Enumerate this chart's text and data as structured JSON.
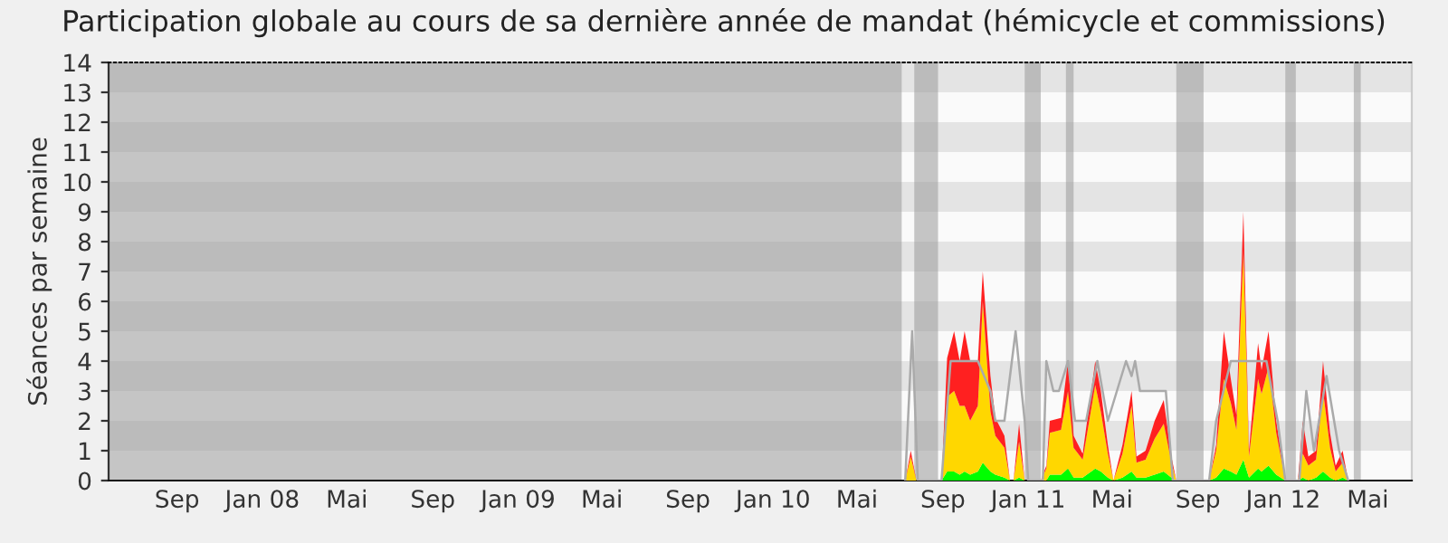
{
  "chart_data": {
    "type": "area",
    "stacked": true,
    "title": "Participation globale au cours de sa dernière année de mandat (hémicycle et commissions)",
    "ylabel": "Séances par semaine",
    "x": [
      "2010-07-04",
      "2010-07-09",
      "2010-07-17",
      "2010-07-25",
      "2010-08-30",
      "2010-09-07",
      "2010-09-17",
      "2010-09-25",
      "2010-10-02",
      "2010-10-10",
      "2010-10-21",
      "2010-10-28",
      "2010-11-08",
      "2010-11-15",
      "2010-11-28",
      "2010-12-06",
      "2010-12-11",
      "2010-12-19",
      "2010-12-27",
      "2011-01-01",
      "2011-01-19",
      "2011-01-27",
      "2011-02-01",
      "2011-02-17",
      "2011-02-27",
      "2011-03-07",
      "2011-03-20",
      "2011-04-07",
      "2011-04-15",
      "2011-04-25",
      "2011-05-03",
      "2011-05-16",
      "2011-05-29",
      "2011-06-05",
      "2011-06-18",
      "2011-07-01",
      "2011-07-14",
      "2011-07-25",
      "2011-08-01",
      "2011-09-17",
      "2011-09-27",
      "2011-10-08",
      "2011-10-18",
      "2011-10-26",
      "2011-11-05",
      "2011-11-13",
      "2011-11-26",
      "2011-12-01",
      "2011-12-11",
      "2011-12-22",
      "2012-01-04",
      "2012-01-22",
      "2012-01-29",
      "2012-02-06",
      "2012-02-17",
      "2012-02-27",
      "2012-03-08",
      "2012-03-16",
      "2012-03-26",
      "2012-04-03"
    ],
    "series": [
      {
        "color": "#00ff00",
        "values": [
          0,
          0,
          0,
          0,
          0,
          0.3,
          0.3,
          0.2,
          0.3,
          0.2,
          0.3,
          0.6,
          0.3,
          0.2,
          0.1,
          0,
          0,
          0.1,
          0,
          0,
          0,
          0,
          0.2,
          0.2,
          0.4,
          0.1,
          0.1,
          0.4,
          0.3,
          0.1,
          0,
          0.1,
          0.3,
          0.1,
          0.1,
          0.2,
          0.3,
          0.1,
          0,
          0,
          0.1,
          0.4,
          0.3,
          0.2,
          0.7,
          0.1,
          0.4,
          0.3,
          0.5,
          0.2,
          0,
          0,
          0.1,
          0,
          0.1,
          0.3,
          0.1,
          0,
          0.1,
          0
        ]
      },
      {
        "color": "#ffd700",
        "values": [
          0,
          0,
          0.8,
          0,
          0,
          2.5,
          2.7,
          2.3,
          2.2,
          1.8,
          2.2,
          5.4,
          2.0,
          1.3,
          1.0,
          0,
          0,
          1.2,
          0,
          0,
          0,
          0.4,
          1.4,
          1.5,
          2.6,
          1.0,
          0.6,
          2.8,
          2.0,
          0.8,
          0,
          0.8,
          2.2,
          0.5,
          0.6,
          1.2,
          1.6,
          0.5,
          0,
          0,
          0.9,
          3.0,
          2.3,
          1.5,
          7.0,
          0.7,
          3.0,
          2.6,
          3.3,
          1.4,
          0,
          0,
          0.8,
          0.5,
          0.6,
          2.7,
          1.0,
          0.3,
          0.5,
          0
        ]
      },
      {
        "color": "#ff2020",
        "values": [
          0,
          0,
          0.2,
          0,
          0,
          1.3,
          2.0,
          1.5,
          2.5,
          2.0,
          1.5,
          1.0,
          1.2,
          0.6,
          0.4,
          0,
          0,
          0.6,
          0,
          0,
          0,
          0.1,
          0.4,
          0.4,
          1.0,
          0.4,
          0.2,
          0.8,
          0.7,
          0.3,
          0,
          0.3,
          0.5,
          0.2,
          0.3,
          0.6,
          0.8,
          0.2,
          0,
          0,
          0.2,
          1.6,
          0.8,
          0.5,
          1.3,
          0.2,
          1.2,
          0.8,
          1.2,
          0.4,
          0,
          0,
          1.1,
          0.3,
          0.3,
          1.0,
          0.5,
          0.2,
          0.4,
          0
        ]
      },
      {
        "type": "line",
        "color": "#aaaaaa",
        "x": [
          "2010-07-09",
          "2010-07-19",
          "2010-07-27",
          "2010-08-30",
          "2010-09-12",
          "2010-10-21",
          "2010-11-08",
          "2010-11-15",
          "2010-11-28",
          "2010-12-14",
          "2010-12-27",
          "2011-01-01",
          "2011-01-22",
          "2011-01-27",
          "2011-02-06",
          "2011-02-14",
          "2011-02-27",
          "2011-03-09",
          "2011-03-25",
          "2011-04-10",
          "2011-04-25",
          "2011-05-21",
          "2011-05-29",
          "2011-06-03",
          "2011-06-10",
          "2011-07-06",
          "2011-07-17",
          "2011-07-27",
          "2011-09-17",
          "2011-09-27",
          "2011-10-18",
          "2011-11-08",
          "2011-12-08",
          "2011-12-24",
          "2012-01-04",
          "2012-01-24",
          "2012-02-03",
          "2012-02-14",
          "2012-03-03",
          "2012-03-21",
          "2012-04-03"
        ],
        "values": [
          0,
          5,
          0,
          0,
          4,
          4,
          3,
          2,
          2,
          5,
          2,
          0,
          0,
          4,
          3,
          3,
          4,
          2,
          2,
          4,
          2,
          4,
          3.5,
          4,
          3,
          3,
          3,
          0,
          0,
          2,
          4,
          4,
          4,
          2,
          0,
          0,
          3,
          1,
          3.5,
          1,
          0
        ]
      }
    ],
    "xlim": [
      "2007-05-26",
      "2012-07-03"
    ],
    "xticks": [
      {
        "value": "2007-09-01",
        "label": "Sep"
      },
      {
        "value": "2008-01-01",
        "label": "Jan 08"
      },
      {
        "value": "2008-05-01",
        "label": "Mai"
      },
      {
        "value": "2008-09-01",
        "label": "Sep"
      },
      {
        "value": "2009-01-01",
        "label": "Jan 09"
      },
      {
        "value": "2009-05-01",
        "label": "Mai"
      },
      {
        "value": "2009-09-01",
        "label": "Sep"
      },
      {
        "value": "2010-01-01",
        "label": "Jan 10"
      },
      {
        "value": "2010-05-01",
        "label": "Mai"
      },
      {
        "value": "2010-09-01",
        "label": "Sep"
      },
      {
        "value": "2011-01-01",
        "label": "Jan 11"
      },
      {
        "value": "2011-05-01",
        "label": "Mai"
      },
      {
        "value": "2011-09-01",
        "label": "Sep"
      },
      {
        "value": "2012-01-01",
        "label": "Jan 12"
      },
      {
        "value": "2012-05-01",
        "label": "Mai"
      }
    ],
    "ylim": [
      0,
      14
    ],
    "yticks": [
      0,
      1,
      2,
      3,
      4,
      5,
      6,
      7,
      8,
      9,
      10,
      11,
      12,
      13,
      14
    ],
    "bands": [
      {
        "axis": "y",
        "from": 1,
        "to": 2,
        "color": "#e4e4e4"
      },
      {
        "axis": "y",
        "from": 3,
        "to": 4,
        "color": "#e4e4e4"
      },
      {
        "axis": "y",
        "from": 5,
        "to": 6,
        "color": "#e4e4e4"
      },
      {
        "axis": "y",
        "from": 7,
        "to": 8,
        "color": "#e4e4e4"
      },
      {
        "axis": "y",
        "from": 9,
        "to": 10,
        "color": "#e4e4e4"
      },
      {
        "axis": "y",
        "from": 11,
        "to": 12,
        "color": "#e4e4e4"
      },
      {
        "axis": "y",
        "from": 13,
        "to": 14,
        "color": "#e4e4e4"
      },
      {
        "axis": "x",
        "from": "2007-05-26",
        "to": "2010-07-04",
        "color": "#999999"
      },
      {
        "axis": "x",
        "from": "2010-07-22",
        "to": "2010-08-25",
        "color": "#999999"
      },
      {
        "axis": "x",
        "from": "2010-12-27",
        "to": "2011-01-19",
        "color": "#999999"
      },
      {
        "axis": "x",
        "from": "2011-02-24",
        "to": "2011-03-07",
        "color": "#999999"
      },
      {
        "axis": "x",
        "from": "2011-08-01",
        "to": "2011-09-09",
        "color": "#999999"
      },
      {
        "axis": "x",
        "from": "2012-01-04",
        "to": "2012-01-19",
        "color": "#999999"
      },
      {
        "axis": "x",
        "from": "2012-04-11",
        "to": "2012-04-21",
        "color": "#999999"
      }
    ]
  }
}
